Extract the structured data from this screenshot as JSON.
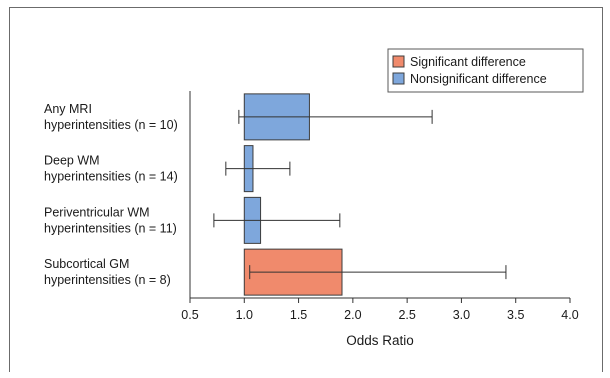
{
  "chart_data": {
    "type": "bar",
    "orientation": "horizontal",
    "baseline": 1.0,
    "categories": [
      [
        "Any MRI",
        "hyperintensities (n = 10)"
      ],
      [
        "Deep WM",
        "hyperintensities (n = 14)"
      ],
      [
        "Periventricular WM",
        "hyperintensities (n = 11)"
      ],
      [
        "Subcortical GM",
        "hyperintensities (n = 8)"
      ]
    ],
    "values": [
      1.6,
      1.08,
      1.15,
      1.9
    ],
    "ci_low": [
      0.95,
      0.83,
      0.72,
      1.05
    ],
    "ci_high": [
      2.73,
      1.42,
      1.88,
      3.41
    ],
    "significant": [
      false,
      false,
      false,
      true
    ],
    "xlabel": "Odds Ratio",
    "xlim": [
      0.5,
      4.0
    ],
    "xticks": [
      "0.5",
      "1.0",
      "1.5",
      "2.0",
      "2.5",
      "3.0",
      "3.5",
      "4.0"
    ],
    "grid": false,
    "legend": {
      "placement": "top-right",
      "entries": [
        {
          "label": "Significant difference",
          "color": "#f08a6c"
        },
        {
          "label": "Nonsignificant difference",
          "color": "#7ea7dc"
        }
      ]
    },
    "colors": {
      "significant": "#f08a6c",
      "nonsignificant": "#7ea7dc"
    }
  }
}
